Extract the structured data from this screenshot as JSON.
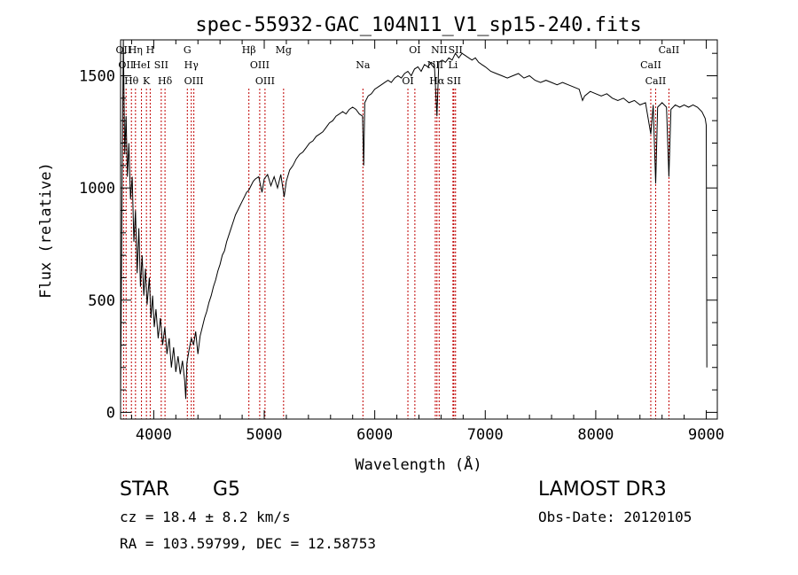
{
  "chart_data": {
    "type": "line",
    "title": "spec-55932-GAC_104N11_V1_sp15-240.fits",
    "xlabel": "Wavelength (Å)",
    "ylabel": "Flux (relative)",
    "xlim": [
      3700,
      9100
    ],
    "ylim": [
      -30,
      1660
    ],
    "x_ticks": [
      4000,
      5000,
      6000,
      7000,
      8000,
      9000
    ],
    "y_ticks": [
      0,
      500,
      1000,
      1500
    ],
    "grid": false,
    "series": [
      {
        "values": [
          [
            3700,
            60
          ],
          [
            3712,
            900
          ],
          [
            3725,
            1700
          ],
          [
            3738,
            1150
          ],
          [
            3750,
            1320
          ],
          [
            3762,
            1050
          ],
          [
            3775,
            1200
          ],
          [
            3790,
            950
          ],
          [
            3805,
            1050
          ],
          [
            3820,
            760
          ],
          [
            3835,
            900
          ],
          [
            3850,
            620
          ],
          [
            3865,
            820
          ],
          [
            3880,
            560
          ],
          [
            3895,
            700
          ],
          [
            3910,
            520
          ],
          [
            3925,
            640
          ],
          [
            3940,
            480
          ],
          [
            3960,
            600
          ],
          [
            3975,
            420
          ],
          [
            3990,
            520
          ],
          [
            4005,
            380
          ],
          [
            4020,
            460
          ],
          [
            4040,
            330
          ],
          [
            4060,
            420
          ],
          [
            4080,
            300
          ],
          [
            4100,
            380
          ],
          [
            4120,
            260
          ],
          [
            4140,
            330
          ],
          [
            4160,
            200
          ],
          [
            4180,
            290
          ],
          [
            4200,
            180
          ],
          [
            4220,
            250
          ],
          [
            4240,
            170
          ],
          [
            4260,
            230
          ],
          [
            4280,
            140
          ],
          [
            4290,
            60
          ],
          [
            4300,
            220
          ],
          [
            4320,
            280
          ],
          [
            4340,
            330
          ],
          [
            4360,
            300
          ],
          [
            4380,
            360
          ],
          [
            4400,
            260
          ],
          [
            4420,
            340
          ],
          [
            4440,
            380
          ],
          [
            4460,
            420
          ],
          [
            4480,
            450
          ],
          [
            4500,
            490
          ],
          [
            4520,
            520
          ],
          [
            4540,
            560
          ],
          [
            4560,
            590
          ],
          [
            4580,
            630
          ],
          [
            4600,
            660
          ],
          [
            4620,
            700
          ],
          [
            4640,
            720
          ],
          [
            4660,
            760
          ],
          [
            4680,
            790
          ],
          [
            4700,
            820
          ],
          [
            4720,
            850
          ],
          [
            4740,
            880
          ],
          [
            4760,
            900
          ],
          [
            4780,
            920
          ],
          [
            4800,
            940
          ],
          [
            4820,
            960
          ],
          [
            4840,
            980
          ],
          [
            4860,
            990
          ],
          [
            4880,
            1010
          ],
          [
            4900,
            1030
          ],
          [
            4920,
            1040
          ],
          [
            4950,
            1050
          ],
          [
            4980,
            980
          ],
          [
            5000,
            1040
          ],
          [
            5030,
            1060
          ],
          [
            5060,
            1010
          ],
          [
            5090,
            1050
          ],
          [
            5120,
            1000
          ],
          [
            5150,
            1060
          ],
          [
            5180,
            960
          ],
          [
            5200,
            1030
          ],
          [
            5230,
            1080
          ],
          [
            5260,
            1100
          ],
          [
            5290,
            1130
          ],
          [
            5320,
            1150
          ],
          [
            5350,
            1160
          ],
          [
            5380,
            1180
          ],
          [
            5410,
            1200
          ],
          [
            5440,
            1210
          ],
          [
            5470,
            1230
          ],
          [
            5500,
            1240
          ],
          [
            5530,
            1250
          ],
          [
            5560,
            1270
          ],
          [
            5590,
            1290
          ],
          [
            5620,
            1300
          ],
          [
            5650,
            1320
          ],
          [
            5680,
            1330
          ],
          [
            5710,
            1340
          ],
          [
            5740,
            1330
          ],
          [
            5770,
            1350
          ],
          [
            5800,
            1360
          ],
          [
            5830,
            1350
          ],
          [
            5860,
            1330
          ],
          [
            5890,
            1320
          ],
          [
            5900,
            1100
          ],
          [
            5910,
            1380
          ],
          [
            5940,
            1410
          ],
          [
            5970,
            1420
          ],
          [
            6000,
            1440
          ],
          [
            6030,
            1450
          ],
          [
            6060,
            1460
          ],
          [
            6090,
            1470
          ],
          [
            6120,
            1480
          ],
          [
            6150,
            1470
          ],
          [
            6180,
            1490
          ],
          [
            6210,
            1500
          ],
          [
            6240,
            1490
          ],
          [
            6270,
            1510
          ],
          [
            6300,
            1520
          ],
          [
            6330,
            1500
          ],
          [
            6360,
            1530
          ],
          [
            6390,
            1540
          ],
          [
            6420,
            1520
          ],
          [
            6450,
            1550
          ],
          [
            6480,
            1540
          ],
          [
            6510,
            1560
          ],
          [
            6540,
            1550
          ],
          [
            6563,
            1320
          ],
          [
            6580,
            1560
          ],
          [
            6610,
            1570
          ],
          [
            6640,
            1560
          ],
          [
            6670,
            1580
          ],
          [
            6700,
            1570
          ],
          [
            6730,
            1600
          ],
          [
            6760,
            1580
          ],
          [
            6790,
            1600
          ],
          [
            6820,
            1590
          ],
          [
            6850,
            1580
          ],
          [
            6880,
            1570
          ],
          [
            6910,
            1580
          ],
          [
            6940,
            1560
          ],
          [
            6970,
            1550
          ],
          [
            7000,
            1540
          ],
          [
            7050,
            1520
          ],
          [
            7100,
            1510
          ],
          [
            7150,
            1500
          ],
          [
            7200,
            1490
          ],
          [
            7250,
            1500
          ],
          [
            7300,
            1510
          ],
          [
            7350,
            1490
          ],
          [
            7400,
            1500
          ],
          [
            7450,
            1480
          ],
          [
            7500,
            1470
          ],
          [
            7550,
            1480
          ],
          [
            7600,
            1470
          ],
          [
            7650,
            1460
          ],
          [
            7700,
            1470
          ],
          [
            7750,
            1460
          ],
          [
            7800,
            1450
          ],
          [
            7850,
            1440
          ],
          [
            7880,
            1390
          ],
          [
            7900,
            1410
          ],
          [
            7950,
            1430
          ],
          [
            8000,
            1420
          ],
          [
            8050,
            1410
          ],
          [
            8100,
            1420
          ],
          [
            8150,
            1400
          ],
          [
            8200,
            1390
          ],
          [
            8250,
            1400
          ],
          [
            8300,
            1380
          ],
          [
            8350,
            1390
          ],
          [
            8400,
            1370
          ],
          [
            8450,
            1380
          ],
          [
            8498,
            1240
          ],
          [
            8520,
            1370
          ],
          [
            8542,
            1020
          ],
          [
            8560,
            1360
          ],
          [
            8600,
            1380
          ],
          [
            8640,
            1360
          ],
          [
            8662,
            1050
          ],
          [
            8680,
            1350
          ],
          [
            8720,
            1370
          ],
          [
            8760,
            1360
          ],
          [
            8800,
            1370
          ],
          [
            8840,
            1360
          ],
          [
            8880,
            1370
          ],
          [
            8920,
            1360
          ],
          [
            8960,
            1340
          ],
          [
            8990,
            1310
          ],
          [
            9000,
            1280
          ],
          [
            9005,
            200
          ]
        ]
      }
    ],
    "lines": [
      {
        "wl": 3727,
        "label": "OII"
      },
      {
        "wl": 3750,
        "label": "OII"
      },
      {
        "wl": 3798,
        "label": "Hθ"
      },
      {
        "wl": 3835,
        "label": "Hη"
      },
      {
        "wl": 3889,
        "label": "HeI"
      },
      {
        "wl": 3934,
        "label": "K"
      },
      {
        "wl": 3968,
        "label": "H"
      },
      {
        "wl": 4068,
        "label": "SII"
      },
      {
        "wl": 4102,
        "label": "Hδ"
      },
      {
        "wl": 4304,
        "label": "G"
      },
      {
        "wl": 4340,
        "label": "Hγ"
      },
      {
        "wl": 4363,
        "label": "OIII"
      },
      {
        "wl": 4861,
        "label": "Hβ"
      },
      {
        "wl": 4959,
        "label": "OIII"
      },
      {
        "wl": 5007,
        "label": "OIII"
      },
      {
        "wl": 5175,
        "label": "Mg"
      },
      {
        "wl": 5893,
        "label": "Na"
      },
      {
        "wl": 6300,
        "label": "OI"
      },
      {
        "wl": 6363,
        "label": "OI"
      },
      {
        "wl": 6548,
        "label": "NII"
      },
      {
        "wl": 6563,
        "label": "Hα"
      },
      {
        "wl": 6583,
        "label": "NII"
      },
      {
        "wl": 6708,
        "label": "Li"
      },
      {
        "wl": 6716,
        "label": "SII"
      },
      {
        "wl": 6731,
        "label": "SII"
      },
      {
        "wl": 8498,
        "label": "CaII"
      },
      {
        "wl": 8542,
        "label": "CaII"
      },
      {
        "wl": 8662,
        "label": "CaII"
      }
    ]
  },
  "info": {
    "class_label": "STAR",
    "subclass_label": "G5",
    "survey": "LAMOST DR3",
    "redshift_line": "cz = 18.4 ± 8.2 km/s",
    "obs_date": "Obs-Date: 20120105",
    "coords": "RA = 103.59799, DEC =  12.58753"
  }
}
